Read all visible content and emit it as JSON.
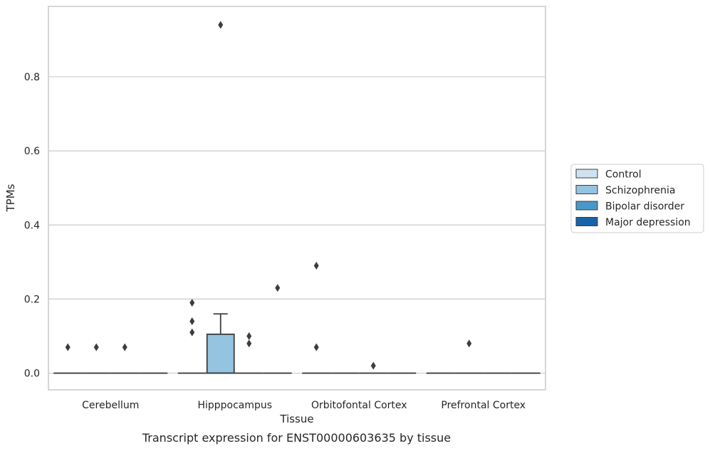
{
  "chart_data": {
    "type": "box",
    "title": "",
    "caption": "Transcript expression for ENST00000603635 by tissue",
    "xlabel": "Tissue",
    "ylabel": "TPMs",
    "ylim": [
      -0.045,
      0.99
    ],
    "yticks": [
      "0.0",
      "0.2",
      "0.4",
      "0.6",
      "0.8"
    ],
    "ytick_values": [
      0.0,
      0.2,
      0.4,
      0.6,
      0.8
    ],
    "grid": "horizontal",
    "legend_position": "right-outside",
    "categories": [
      "Cerebellum",
      "Hipppocampus",
      "Orbitofontal Cortex",
      "Prefrontal Cortex"
    ],
    "series": [
      {
        "name": "Control",
        "color": "#d0e1f2"
      },
      {
        "name": "Schizophrenia",
        "color": "#94c4df"
      },
      {
        "name": "Bipolar disorder",
        "color": "#4a98c9"
      },
      {
        "name": "Major depression",
        "color": "#1764ab"
      }
    ],
    "boxes": [
      {
        "category": "Cerebellum",
        "series": "Control",
        "q1": 0,
        "median": 0,
        "q3": 0,
        "whisker_low": 0,
        "whisker_high": 0,
        "outliers": [
          0.07
        ]
      },
      {
        "category": "Cerebellum",
        "series": "Schizophrenia",
        "q1": 0,
        "median": 0,
        "q3": 0,
        "whisker_low": 0,
        "whisker_high": 0,
        "outliers": [
          0.07
        ]
      },
      {
        "category": "Cerebellum",
        "series": "Bipolar disorder",
        "q1": 0,
        "median": 0,
        "q3": 0,
        "whisker_low": 0,
        "whisker_high": 0,
        "outliers": [
          0.07
        ]
      },
      {
        "category": "Cerebellum",
        "series": "Major depression",
        "q1": 0,
        "median": 0,
        "q3": 0,
        "whisker_low": 0,
        "whisker_high": 0,
        "outliers": []
      },
      {
        "category": "Hipppocampus",
        "series": "Control",
        "q1": 0,
        "median": 0,
        "q3": 0,
        "whisker_low": 0,
        "whisker_high": 0,
        "outliers": [
          0.19,
          0.14,
          0.11
        ]
      },
      {
        "category": "Hipppocampus",
        "series": "Schizophrenia",
        "q1": 0,
        "median": 0,
        "q3": 0.105,
        "whisker_low": 0,
        "whisker_high": 0.16,
        "outliers": [
          0.94
        ]
      },
      {
        "category": "Hipppocampus",
        "series": "Bipolar disorder",
        "q1": 0,
        "median": 0,
        "q3": 0,
        "whisker_low": 0,
        "whisker_high": 0,
        "outliers": [
          0.1,
          0.08
        ]
      },
      {
        "category": "Hipppocampus",
        "series": "Major depression",
        "q1": 0,
        "median": 0,
        "q3": 0,
        "whisker_low": 0,
        "whisker_high": 0,
        "outliers": [
          0.23
        ]
      },
      {
        "category": "Orbitofontal Cortex",
        "series": "Control",
        "q1": 0,
        "median": 0,
        "q3": 0,
        "whisker_low": 0,
        "whisker_high": 0,
        "outliers": [
          0.29,
          0.07
        ]
      },
      {
        "category": "Orbitofontal Cortex",
        "series": "Schizophrenia",
        "q1": 0,
        "median": 0,
        "q3": 0,
        "whisker_low": 0,
        "whisker_high": 0,
        "outliers": []
      },
      {
        "category": "Orbitofontal Cortex",
        "series": "Bipolar disorder",
        "q1": 0,
        "median": 0,
        "q3": 0,
        "whisker_low": 0,
        "whisker_high": 0,
        "outliers": [
          0.02
        ]
      },
      {
        "category": "Orbitofontal Cortex",
        "series": "Major depression",
        "q1": 0,
        "median": 0,
        "q3": 0,
        "whisker_low": 0,
        "whisker_high": 0,
        "outliers": []
      },
      {
        "category": "Prefrontal Cortex",
        "series": "Control",
        "q1": 0,
        "median": 0,
        "q3": 0,
        "whisker_low": 0,
        "whisker_high": 0,
        "outliers": []
      },
      {
        "category": "Prefrontal Cortex",
        "series": "Schizophrenia",
        "q1": 0,
        "median": 0,
        "q3": 0,
        "whisker_low": 0,
        "whisker_high": 0,
        "outliers": [
          0.08
        ]
      },
      {
        "category": "Prefrontal Cortex",
        "series": "Bipolar disorder",
        "q1": 0,
        "median": 0,
        "q3": 0,
        "whisker_low": 0,
        "whisker_high": 0,
        "outliers": []
      },
      {
        "category": "Prefrontal Cortex",
        "series": "Major depression",
        "q1": 0,
        "median": 0,
        "q3": 0,
        "whisker_low": 0,
        "whisker_high": 0,
        "outliers": []
      }
    ]
  }
}
